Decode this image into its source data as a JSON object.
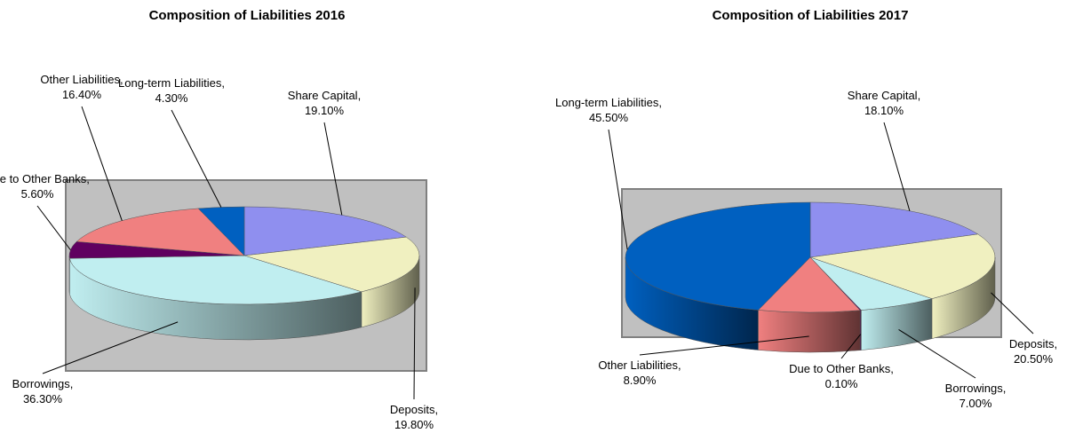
{
  "chart_data": [
    {
      "type": "pie3d",
      "title": "Composition of Liabilities 2016",
      "categories": [
        "Share Capital",
        "Deposits",
        "Borrowings",
        "Due to Other Banks",
        "Other Liabilities",
        "Long-term Liabilities"
      ],
      "values": [
        19.1,
        19.8,
        36.3,
        5.6,
        16.4,
        4.3
      ],
      "value_labels": [
        "19.10%",
        "19.80%",
        "36.30%",
        "5.60%",
        "16.40%",
        "4.30%"
      ],
      "colors": [
        "#8f8fef",
        "#f0f0c0",
        "#c0eef0",
        "#600060",
        "#f08080",
        "#0060c0"
      ]
    },
    {
      "type": "pie3d",
      "title": "Composition of Liabilities 2017",
      "categories": [
        "Share Capital",
        "Deposits",
        "Borrowings",
        "Due to Other Banks",
        "Other Liabilities",
        "Long-term Liabilities"
      ],
      "values": [
        18.1,
        20.5,
        7.0,
        0.1,
        8.9,
        45.5
      ],
      "value_labels": [
        "18.10%",
        "20.50%",
        "7.00%",
        "0.10%",
        "8.90%",
        "45.50%"
      ],
      "colors": [
        "#8f8fef",
        "#f0f0c0",
        "#c0eef0",
        "#600060",
        "#f08080",
        "#0060c0"
      ]
    }
  ]
}
